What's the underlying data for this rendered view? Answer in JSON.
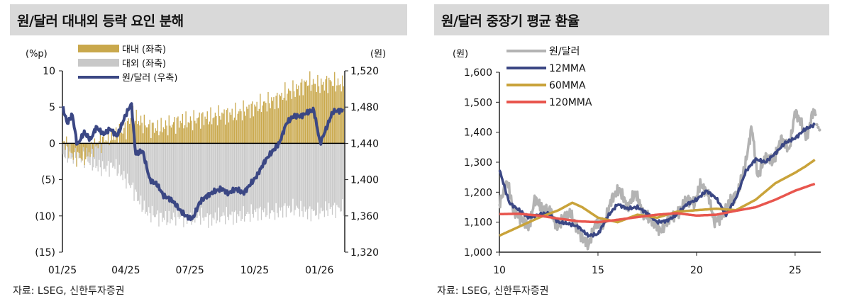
{
  "charts": [
    {
      "title": "원/달러 대내외 등락 요인 분해",
      "source": "자료: LSEG, 신한투자증권",
      "left_unit": "(%p)",
      "right_unit": "(원)"
    },
    {
      "title": "원/달러 중장기 평균 환율",
      "source": "자료: LSEG, 신한투자증권",
      "left_unit": "(원)"
    }
  ],
  "chart_data": [
    {
      "type": "bar",
      "title": "원/달러 대내외 등락 요인 분해",
      "x_ticks": [
        "01/25",
        "04/25",
        "07/25",
        "10/25",
        "01/26"
      ],
      "x_range": [
        "2025-01-01",
        "2026-02-06"
      ],
      "ylim_left": [
        -15,
        10
      ],
      "ylim_right": [
        1320,
        1520
      ],
      "left_ticks": [
        "10",
        "5",
        "0",
        "(5)",
        "(10)",
        "(15)"
      ],
      "left_tick_values": [
        10,
        5,
        0,
        -5,
        -10,
        -15
      ],
      "right_ticks": [
        "1,520",
        "1,480",
        "1,440",
        "1,400",
        "1,360",
        "1,320"
      ],
      "right_tick_values": [
        1520,
        1480,
        1440,
        1400,
        1360,
        1320
      ],
      "legend_position": "top-left",
      "colors": {
        "domestic": "#c9a84c",
        "external": "#c8c8c8",
        "fx": "#3b4784"
      },
      "series": [
        {
          "name": "대내 (좌축)",
          "axis": "left",
          "points": [
            [
              "2025-01-02",
              0.5
            ],
            [
              "2025-01-15",
              -1.5
            ],
            [
              "2025-02-01",
              -2.0
            ],
            [
              "2025-02-15",
              -0.5
            ],
            [
              "2025-03-01",
              0.5
            ],
            [
              "2025-03-15",
              1.0
            ],
            [
              "2025-04-01",
              2.0
            ],
            [
              "2025-04-10",
              4.0
            ],
            [
              "2025-04-20",
              3.0
            ],
            [
              "2025-05-01",
              2.5
            ],
            [
              "2025-05-15",
              2.0
            ],
            [
              "2025-06-01",
              2.5
            ],
            [
              "2025-06-15",
              3.0
            ],
            [
              "2025-07-01",
              3.0
            ],
            [
              "2025-07-15",
              3.5
            ],
            [
              "2025-08-01",
              3.5
            ],
            [
              "2025-08-15",
              4.0
            ],
            [
              "2025-09-01",
              4.0
            ],
            [
              "2025-09-15",
              4.5
            ],
            [
              "2025-10-01",
              5.0
            ],
            [
              "2025-10-15",
              5.5
            ],
            [
              "2025-11-01",
              6.0
            ],
            [
              "2025-11-15",
              7.0
            ],
            [
              "2025-12-01",
              7.5
            ],
            [
              "2025-12-15",
              8.5
            ],
            [
              "2026-01-01",
              8.0
            ],
            [
              "2026-01-15",
              8.5
            ],
            [
              "2026-02-05",
              8.0
            ]
          ]
        },
        {
          "name": "대외 (좌축)",
          "axis": "left",
          "points": [
            [
              "2025-01-02",
              -1.5
            ],
            [
              "2025-01-15",
              -2.0
            ],
            [
              "2025-02-01",
              -2.0
            ],
            [
              "2025-02-15",
              -3.0
            ],
            [
              "2025-03-01",
              -3.5
            ],
            [
              "2025-03-15",
              -3.0
            ],
            [
              "2025-04-01",
              -5.0
            ],
            [
              "2025-04-10",
              -6.0
            ],
            [
              "2025-04-20",
              -8.0
            ],
            [
              "2025-05-01",
              -9.5
            ],
            [
              "2025-05-15",
              -10.0
            ],
            [
              "2025-06-01",
              -10.5
            ],
            [
              "2025-06-15",
              -10.0
            ],
            [
              "2025-07-01",
              -10.5
            ],
            [
              "2025-07-15",
              -10.0
            ],
            [
              "2025-08-01",
              -10.5
            ],
            [
              "2025-08-15",
              -10.0
            ],
            [
              "2025-09-01",
              -10.0
            ],
            [
              "2025-09-15",
              -10.0
            ],
            [
              "2025-10-01",
              -9.5
            ],
            [
              "2025-10-15",
              -9.5
            ],
            [
              "2025-11-01",
              -9.5
            ],
            [
              "2025-11-15",
              -9.0
            ],
            [
              "2025-12-01",
              -9.0
            ],
            [
              "2025-12-15",
              -9.5
            ],
            [
              "2026-01-01",
              -9.5
            ],
            [
              "2026-01-15",
              -9.0
            ],
            [
              "2026-02-05",
              -9.0
            ]
          ]
        },
        {
          "name": "원/달러 (우축)",
          "axis": "right",
          "type": "line",
          "points": [
            [
              "2025-01-02",
              1478
            ],
            [
              "2025-01-08",
              1462
            ],
            [
              "2025-01-15",
              1472
            ],
            [
              "2025-01-22",
              1438
            ],
            [
              "2025-02-01",
              1452
            ],
            [
              "2025-02-10",
              1444
            ],
            [
              "2025-02-18",
              1458
            ],
            [
              "2025-02-28",
              1450
            ],
            [
              "2025-03-10",
              1456
            ],
            [
              "2025-03-20",
              1448
            ],
            [
              "2025-03-31",
              1470
            ],
            [
              "2025-04-09",
              1484
            ],
            [
              "2025-04-15",
              1428
            ],
            [
              "2025-04-25",
              1432
            ],
            [
              "2025-05-05",
              1400
            ],
            [
              "2025-05-15",
              1395
            ],
            [
              "2025-05-25",
              1382
            ],
            [
              "2025-06-05",
              1378
            ],
            [
              "2025-06-15",
              1368
            ],
            [
              "2025-06-25",
              1360
            ],
            [
              "2025-07-05",
              1357
            ],
            [
              "2025-07-15",
              1375
            ],
            [
              "2025-07-25",
              1382
            ],
            [
              "2025-08-05",
              1387
            ],
            [
              "2025-08-15",
              1390
            ],
            [
              "2025-08-25",
              1385
            ],
            [
              "2025-09-05",
              1390
            ],
            [
              "2025-09-15",
              1385
            ],
            [
              "2025-09-25",
              1395
            ],
            [
              "2025-10-05",
              1405
            ],
            [
              "2025-10-15",
              1420
            ],
            [
              "2025-10-25",
              1430
            ],
            [
              "2025-11-05",
              1440
            ],
            [
              "2025-11-15",
              1462
            ],
            [
              "2025-11-25",
              1470
            ],
            [
              "2025-12-05",
              1470
            ],
            [
              "2025-12-15",
              1474
            ],
            [
              "2025-12-24",
              1477
            ],
            [
              "2026-01-02",
              1440
            ],
            [
              "2026-01-10",
              1455
            ],
            [
              "2026-01-20",
              1475
            ],
            [
              "2026-02-05",
              1477
            ]
          ]
        }
      ]
    },
    {
      "type": "line",
      "title": "원/달러 중장기 평균 환율",
      "xlim": [
        2010,
        2026.3
      ],
      "ylim": [
        1000,
        1600
      ],
      "x_ticks": [
        "10",
        "15",
        "20",
        "25"
      ],
      "x_tick_values": [
        2010,
        2015,
        2020,
        2025
      ],
      "y_ticks": [
        "1,600",
        "1,500",
        "1,400",
        "1,300",
        "1,200",
        "1,100",
        "1,000"
      ],
      "y_tick_values": [
        1600,
        1500,
        1400,
        1300,
        1200,
        1100,
        1000
      ],
      "legend_position": "top-left",
      "series": [
        {
          "name": "원/달러",
          "color": "#b3b3b3",
          "points": [
            [
              2010.0,
              1160
            ],
            [
              2010.4,
              1240
            ],
            [
              2010.7,
              1140
            ],
            [
              2011.0,
              1120
            ],
            [
              2011.5,
              1080
            ],
            [
              2011.8,
              1180
            ],
            [
              2012.2,
              1140
            ],
            [
              2012.6,
              1140
            ],
            [
              2012.9,
              1080
            ],
            [
              2013.3,
              1120
            ],
            [
              2013.6,
              1130
            ],
            [
              2014.0,
              1070
            ],
            [
              2014.5,
              1020
            ],
            [
              2014.9,
              1100
            ],
            [
              2015.3,
              1090
            ],
            [
              2015.7,
              1180
            ],
            [
              2016.1,
              1210
            ],
            [
              2016.5,
              1150
            ],
            [
              2016.9,
              1200
            ],
            [
              2017.3,
              1130
            ],
            [
              2017.8,
              1100
            ],
            [
              2018.2,
              1070
            ],
            [
              2018.7,
              1120
            ],
            [
              2019.1,
              1130
            ],
            [
              2019.5,
              1180
            ],
            [
              2019.9,
              1160
            ],
            [
              2020.2,
              1230
            ],
            [
              2020.6,
              1190
            ],
            [
              2020.9,
              1100
            ],
            [
              2021.3,
              1120
            ],
            [
              2021.7,
              1170
            ],
            [
              2022.1,
              1200
            ],
            [
              2022.5,
              1300
            ],
            [
              2022.8,
              1420
            ],
            [
              2023.1,
              1250
            ],
            [
              2023.5,
              1320
            ],
            [
              2023.9,
              1300
            ],
            [
              2024.3,
              1380
            ],
            [
              2024.7,
              1340
            ],
            [
              2025.0,
              1470
            ],
            [
              2025.3,
              1430
            ],
            [
              2025.6,
              1380
            ],
            [
              2025.9,
              1470
            ],
            [
              2026.1,
              1465
            ]
          ]
        },
        {
          "name": "12MMA",
          "color": "#3b4784",
          "points": [
            [
              2010.0,
              1275
            ],
            [
              2010.5,
              1165
            ],
            [
              2011.0,
              1140
            ],
            [
              2011.5,
              1115
            ],
            [
              2012.0,
              1125
            ],
            [
              2012.5,
              1130
            ],
            [
              2013.0,
              1100
            ],
            [
              2013.5,
              1095
            ],
            [
              2014.0,
              1085
            ],
            [
              2014.5,
              1055
            ],
            [
              2015.0,
              1060
            ],
            [
              2015.5,
              1120
            ],
            [
              2016.0,
              1160
            ],
            [
              2016.5,
              1145
            ],
            [
              2017.0,
              1150
            ],
            [
              2017.5,
              1130
            ],
            [
              2018.0,
              1100
            ],
            [
              2018.5,
              1105
            ],
            [
              2019.0,
              1125
            ],
            [
              2019.5,
              1160
            ],
            [
              2020.0,
              1175
            ],
            [
              2020.5,
              1205
            ],
            [
              2021.0,
              1180
            ],
            [
              2021.5,
              1125
            ],
            [
              2022.0,
              1180
            ],
            [
              2022.5,
              1270
            ],
            [
              2023.0,
              1310
            ],
            [
              2023.5,
              1300
            ],
            [
              2024.0,
              1330
            ],
            [
              2024.5,
              1365
            ],
            [
              2025.0,
              1380
            ],
            [
              2025.5,
              1410
            ],
            [
              2026.0,
              1425
            ]
          ]
        },
        {
          "name": "60MMA",
          "color": "#c9a33a",
          "points": [
            [
              2010.0,
              1055
            ],
            [
              2011.0,
              1085
            ],
            [
              2012.0,
              1115
            ],
            [
              2013.0,
              1140
            ],
            [
              2013.7,
              1165
            ],
            [
              2014.2,
              1150
            ],
            [
              2015.0,
              1115
            ],
            [
              2016.0,
              1100
            ],
            [
              2017.0,
              1125
            ],
            [
              2018.0,
              1115
            ],
            [
              2019.0,
              1135
            ],
            [
              2020.0,
              1140
            ],
            [
              2021.0,
              1145
            ],
            [
              2022.0,
              1140
            ],
            [
              2023.0,
              1175
            ],
            [
              2024.0,
              1230
            ],
            [
              2025.0,
              1265
            ],
            [
              2025.5,
              1285
            ],
            [
              2026.0,
              1308
            ]
          ]
        },
        {
          "name": "120MMA",
          "color": "#e8564e",
          "points": [
            [
              2010.0,
              1127
            ],
            [
              2011.0,
              1128
            ],
            [
              2012.0,
              1122
            ],
            [
              2013.0,
              1112
            ],
            [
              2014.0,
              1103
            ],
            [
              2015.0,
              1100
            ],
            [
              2016.0,
              1108
            ],
            [
              2017.0,
              1117
            ],
            [
              2018.0,
              1125
            ],
            [
              2019.0,
              1130
            ],
            [
              2020.0,
              1122
            ],
            [
              2021.0,
              1125
            ],
            [
              2022.0,
              1138
            ],
            [
              2023.0,
              1150
            ],
            [
              2024.0,
              1175
            ],
            [
              2025.0,
              1205
            ],
            [
              2026.0,
              1228
            ]
          ]
        }
      ],
      "projection": {
        "color": "#b3b3b3",
        "points": [
          [
            2026.1,
            1425
          ],
          [
            2026.3,
            1400
          ]
        ]
      }
    }
  ]
}
